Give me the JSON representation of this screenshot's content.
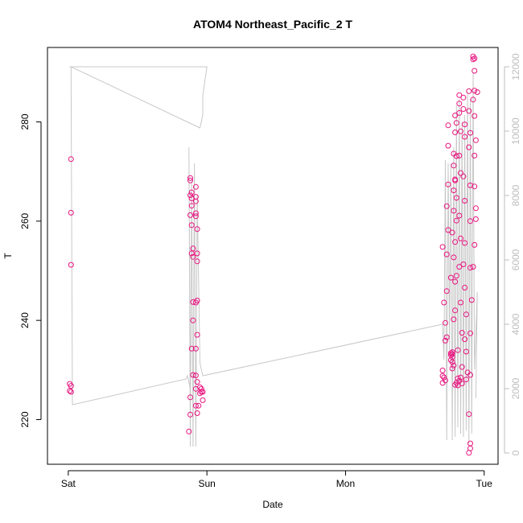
{
  "chart_data": {
    "type": "scatter",
    "title": "ATOM4 Northeast_Pacific_2 T",
    "xlabel": "Date",
    "ylabel": "T",
    "x_ticks": [
      "Sat",
      "Sun",
      "Mon",
      "Tue"
    ],
    "x_range_days": [
      -0.15,
      3.1
    ],
    "ylim": [
      211,
      295
    ],
    "y_ticks": [
      220,
      240,
      260,
      280
    ],
    "y2lim": [
      -350,
      12600
    ],
    "y2_ticks": [
      0,
      2000,
      4000,
      6000,
      8000,
      10000,
      12000
    ],
    "grid": false,
    "colors": {
      "points": "#e8137f",
      "line": "#c8c8c8"
    },
    "series": [
      {
        "values": [
          [
            0.02,
            272.5
          ],
          [
            0.02,
            261.7
          ],
          [
            0.02,
            251.2
          ],
          [
            0.01,
            227.2
          ],
          [
            0.02,
            226.8
          ],
          [
            0.01,
            225.8
          ],
          [
            0.02,
            225.6
          ],
          [
            0.88,
            268.7
          ],
          [
            0.88,
            268.2
          ],
          [
            0.89,
            265.8
          ],
          [
            0.88,
            265.2
          ],
          [
            0.89,
            264.6
          ],
          [
            0.89,
            263.1
          ],
          [
            0.88,
            261.2
          ],
          [
            0.89,
            259.2
          ],
          [
            0.9,
            254.5
          ],
          [
            0.89,
            253.5
          ],
          [
            0.9,
            252.8
          ],
          [
            0.9,
            243.7
          ],
          [
            0.9,
            240.0
          ],
          [
            0.89,
            234.3
          ],
          [
            0.9,
            229.0
          ],
          [
            0.88,
            224.5
          ],
          [
            0.88,
            221.0
          ],
          [
            0.87,
            217.6
          ],
          [
            0.92,
            266.9
          ],
          [
            0.92,
            264.9
          ],
          [
            0.92,
            264.0
          ],
          [
            0.92,
            261.6
          ],
          [
            0.92,
            261.0
          ],
          [
            0.93,
            258.4
          ],
          [
            0.93,
            253.5
          ],
          [
            0.93,
            251.9
          ],
          [
            0.92,
            243.6
          ],
          [
            0.93,
            244.0
          ],
          [
            0.93,
            237.1
          ],
          [
            0.92,
            234.3
          ],
          [
            0.92,
            228.9
          ],
          [
            0.93,
            227.6
          ],
          [
            0.92,
            226.2
          ],
          [
            0.92,
            222.8
          ],
          [
            0.94,
            222.8
          ],
          [
            0.93,
            221.3
          ],
          [
            0.95,
            226.5
          ],
          [
            0.96,
            226.2
          ],
          [
            0.96,
            225.6
          ],
          [
            0.97,
            225.6
          ],
          [
            0.97,
            223.9
          ],
          [
            0.95,
            225.3
          ],
          [
            2.7,
            254.8
          ],
          [
            2.71,
            243.6
          ],
          [
            2.72,
            239.5
          ],
          [
            2.72,
            235.9
          ],
          [
            2.7,
            229.9
          ],
          [
            2.7,
            228.8
          ],
          [
            2.71,
            228.5
          ],
          [
            2.72,
            227.9
          ],
          [
            2.7,
            227.4
          ],
          [
            2.73,
            236.6
          ],
          [
            2.73,
            245.9
          ],
          [
            2.74,
            279.3
          ],
          [
            2.74,
            275.2
          ],
          [
            2.74,
            267.4
          ],
          [
            2.73,
            263.0
          ],
          [
            2.74,
            258.2
          ],
          [
            2.73,
            253.3
          ],
          [
            2.76,
            248.6
          ],
          [
            2.76,
            233.4
          ],
          [
            2.77,
            233.2
          ],
          [
            2.77,
            232.6
          ],
          [
            2.76,
            232.0
          ],
          [
            2.77,
            231.6
          ],
          [
            2.78,
            230.9
          ],
          [
            2.77,
            230.3
          ],
          [
            2.76,
            233.0
          ],
          [
            2.77,
            233.6
          ],
          [
            2.78,
            273.6
          ],
          [
            2.78,
            271.2
          ],
          [
            2.79,
            268.2
          ],
          [
            2.78,
            266.2
          ],
          [
            2.78,
            262.1
          ],
          [
            2.77,
            257.7
          ],
          [
            2.78,
            252.7
          ],
          [
            2.79,
            247.8
          ],
          [
            2.79,
            242.0
          ],
          [
            2.78,
            240.2
          ],
          [
            2.79,
            281.3
          ],
          [
            2.8,
            279.8
          ],
          [
            2.79,
            277.9
          ],
          [
            2.8,
            273.1
          ],
          [
            2.79,
            268.4
          ],
          [
            2.8,
            264.7
          ],
          [
            2.8,
            260.1
          ],
          [
            2.79,
            255.8
          ],
          [
            2.8,
            249.0
          ],
          [
            2.81,
            234.0
          ],
          [
            2.81,
            228.3
          ],
          [
            2.8,
            227.4
          ],
          [
            2.81,
            226.9
          ],
          [
            2.79,
            227.0
          ],
          [
            2.82,
            285.4
          ],
          [
            2.82,
            283.7
          ],
          [
            2.82,
            281.8
          ],
          [
            2.83,
            278.1
          ],
          [
            2.82,
            273.2
          ],
          [
            2.83,
            269.7
          ],
          [
            2.82,
            261.1
          ],
          [
            2.83,
            256.5
          ],
          [
            2.82,
            250.8
          ],
          [
            2.83,
            243.6
          ],
          [
            2.84,
            237.5
          ],
          [
            2.84,
            230.6
          ],
          [
            2.83,
            228.5
          ],
          [
            2.82,
            227.8
          ],
          [
            2.84,
            227.3
          ],
          [
            2.85,
            284.9
          ],
          [
            2.85,
            282.6
          ],
          [
            2.86,
            279.5
          ],
          [
            2.86,
            277.0
          ],
          [
            2.85,
            269.0
          ],
          [
            2.86,
            264.1
          ],
          [
            2.86,
            255.6
          ],
          [
            2.85,
            251.3
          ],
          [
            2.86,
            246.6
          ],
          [
            2.87,
            241.2
          ],
          [
            2.86,
            236.2
          ],
          [
            2.87,
            233.7
          ],
          [
            2.88,
            229.5
          ],
          [
            2.87,
            228.1
          ],
          [
            2.89,
            286.2
          ],
          [
            2.89,
            282.2
          ],
          [
            2.9,
            277.8
          ],
          [
            2.89,
            274.9
          ],
          [
            2.9,
            267.2
          ],
          [
            2.9,
            260.0
          ],
          [
            2.9,
            250.6
          ],
          [
            2.91,
            244.1
          ],
          [
            2.9,
            237.4
          ],
          [
            2.9,
            229.0
          ],
          [
            2.89,
            221.1
          ],
          [
            2.9,
            215.2
          ],
          [
            2.9,
            214.2
          ],
          [
            2.89,
            213.3
          ],
          [
            2.92,
            293.2
          ],
          [
            2.92,
            292.6
          ],
          [
            2.93,
            292.8
          ],
          [
            2.93,
            290.3
          ],
          [
            2.93,
            286.3
          ],
          [
            2.93,
            281.2
          ],
          [
            2.93,
            273.2
          ],
          [
            2.93,
            267.0
          ],
          [
            2.94,
            262.6
          ],
          [
            2.94,
            260.4
          ],
          [
            2.93,
            255.2
          ],
          [
            2.92,
            250.8
          ],
          [
            2.94,
            276.3
          ],
          [
            2.95,
            286.0
          ],
          [
            2.92,
            284.5
          ]
        ]
      }
    ],
    "line_series": {
      "axis": "right",
      "values": [
        [
          0.01,
          12000
        ],
        [
          0.02,
          12000
        ],
        [
          1.0,
          12000
        ],
        [
          0.97,
          11100
        ],
        [
          0.97,
          10500
        ],
        [
          0.96,
          10300
        ],
        [
          0.95,
          10100
        ],
        [
          0.02,
          12000
        ],
        [
          0.02,
          11950
        ],
        [
          0.03,
          1500
        ],
        [
          0.85,
          2300
        ],
        [
          0.86,
          2400
        ],
        [
          0.88,
          2000
        ],
        [
          0.87,
          9500
        ],
        [
          0.88,
          200
        ],
        [
          0.89,
          8500
        ],
        [
          0.9,
          200
        ],
        [
          0.91,
          9000
        ],
        [
          0.92,
          200
        ],
        [
          0.93,
          8000
        ],
        [
          0.95,
          2800
        ],
        [
          0.97,
          2400
        ],
        [
          2.7,
          4000
        ],
        [
          2.71,
          2900
        ],
        [
          2.72,
          9100
        ],
        [
          2.73,
          400
        ],
        [
          2.74,
          9000
        ],
        [
          2.75,
          3200
        ],
        [
          2.76,
          9000
        ],
        [
          2.77,
          400
        ],
        [
          2.78,
          9500
        ],
        [
          2.79,
          500
        ],
        [
          2.8,
          10800
        ],
        [
          2.81,
          800
        ],
        [
          2.82,
          11000
        ],
        [
          2.83,
          600
        ],
        [
          2.84,
          10300
        ],
        [
          2.85,
          500
        ],
        [
          2.86,
          10500
        ],
        [
          2.87,
          700
        ],
        [
          2.88,
          11200
        ],
        [
          2.89,
          300
        ],
        [
          2.9,
          11000
        ],
        [
          2.91,
          600
        ],
        [
          2.92,
          11800
        ],
        [
          2.93,
          2600
        ],
        [
          2.95,
          5000
        ],
        [
          2.94,
          1700
        ]
      ]
    }
  }
}
